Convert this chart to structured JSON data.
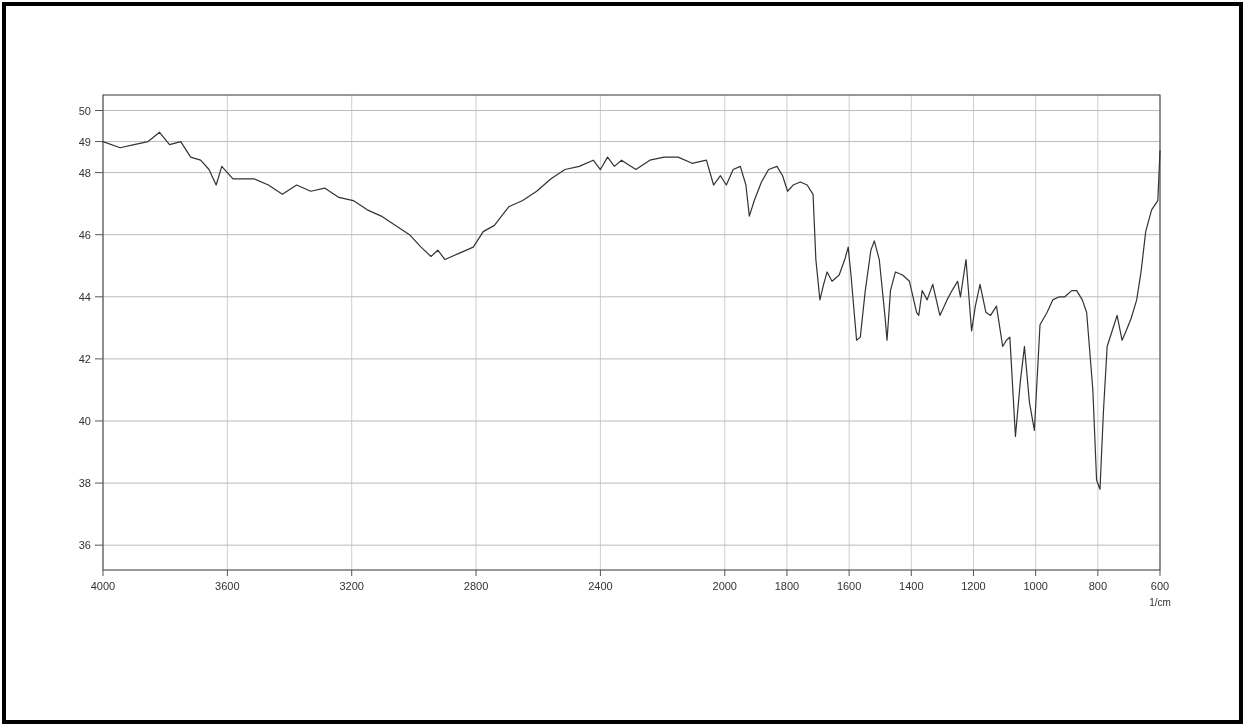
{
  "chart_data": {
    "type": "line",
    "xlabel": "1/cm",
    "xlim": [
      4000,
      600
    ],
    "xticks": [
      4000,
      3600,
      3200,
      2800,
      2400,
      2000,
      1800,
      1600,
      1400,
      1200,
      1000,
      800,
      600
    ],
    "ylim": [
      35.2,
      50.5
    ],
    "yticks": [
      36,
      38,
      40,
      42,
      44,
      46,
      48,
      49,
      50
    ],
    "grid": true,
    "marker": "none",
    "line_style": "solid",
    "series": [
      {
        "color": "#333333",
        "x": [
          4000,
          3945,
          3900,
          3855,
          3818,
          3786,
          3750,
          3718,
          3686,
          3659,
          3636,
          3618,
          3582,
          3514,
          3468,
          3423,
          3377,
          3332,
          3286,
          3241,
          3195,
          3150,
          3105,
          3059,
          3014,
          2977,
          2945,
          2923,
          2900,
          2855,
          2809,
          2777,
          2741,
          2695,
          2650,
          2605,
          2559,
          2514,
          2468,
          2423,
          2400,
          2377,
          2355,
          2332,
          2286,
          2241,
          2195,
          2150,
          2105,
          2059,
          2036,
          2014,
          1995,
          1973,
          1950,
          1932,
          1921,
          1905,
          1882,
          1859,
          1832,
          1814,
          1798,
          1780,
          1757,
          1735,
          1716,
          1707,
          1694,
          1682,
          1671,
          1655,
          1632,
          1614,
          1603,
          1594,
          1576,
          1564,
          1548,
          1530,
          1519,
          1503,
          1485,
          1478,
          1467,
          1451,
          1428,
          1406,
          1383,
          1376,
          1365,
          1349,
          1331,
          1308,
          1285,
          1269,
          1251,
          1242,
          1224,
          1206,
          1194,
          1179,
          1160,
          1145,
          1126,
          1106,
          1094,
          1083,
          1065,
          1049,
          1036,
          1020,
          1004,
          986,
          963,
          945,
          924,
          906,
          884,
          868,
          850,
          836,
          816,
          804,
          793,
          782,
          770,
          754,
          738,
          722,
          709,
          693,
          675,
          661,
          646,
          627,
          607,
          600
        ],
        "values": [
          49.0,
          48.8,
          48.9,
          49.0,
          49.3,
          48.9,
          49.0,
          48.5,
          48.4,
          48.1,
          47.6,
          48.2,
          47.8,
          47.8,
          47.6,
          47.3,
          47.6,
          47.4,
          47.5,
          47.2,
          47.1,
          46.8,
          46.6,
          46.3,
          46.0,
          45.6,
          45.3,
          45.5,
          45.2,
          45.4,
          45.6,
          46.1,
          46.3,
          46.9,
          47.1,
          47.4,
          47.8,
          48.1,
          48.2,
          48.4,
          48.1,
          48.5,
          48.2,
          48.4,
          48.1,
          48.4,
          48.5,
          48.5,
          48.3,
          48.4,
          47.6,
          47.9,
          47.6,
          48.1,
          48.2,
          47.6,
          46.6,
          47.1,
          47.7,
          48.1,
          48.2,
          47.9,
          47.4,
          47.6,
          47.7,
          47.6,
          47.3,
          45.2,
          43.9,
          44.4,
          44.8,
          44.5,
          44.7,
          45.2,
          45.6,
          44.7,
          42.6,
          42.7,
          44.2,
          45.5,
          45.8,
          45.2,
          43.4,
          42.6,
          44.2,
          44.8,
          44.7,
          44.5,
          43.5,
          43.4,
          44.2,
          43.9,
          44.4,
          43.4,
          43.9,
          44.2,
          44.5,
          44.0,
          45.2,
          42.9,
          43.7,
          44.4,
          43.5,
          43.4,
          43.7,
          42.4,
          42.6,
          42.7,
          39.5,
          41.3,
          42.4,
          40.6,
          39.7,
          43.1,
          43.5,
          43.9,
          44.0,
          44.0,
          44.2,
          44.2,
          43.9,
          43.5,
          41.0,
          38.1,
          37.8,
          40.3,
          42.4,
          42.9,
          43.4,
          42.6,
          42.9,
          43.3,
          43.9,
          44.8,
          46.1,
          46.8,
          47.1,
          48.7
        ]
      }
    ]
  }
}
